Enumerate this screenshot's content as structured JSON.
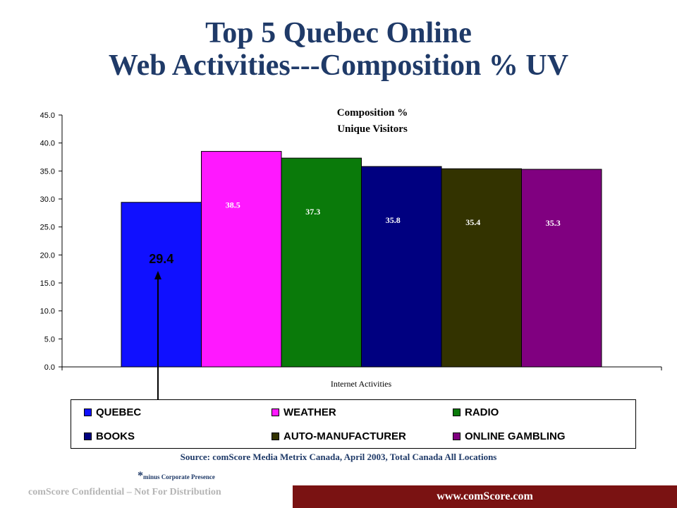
{
  "slide": {
    "title_line1": "Top 5 Quebec Online",
    "title_line2": "Web Activities---Composition % UV",
    "source": "Source: comScore Media Metrix Canada, April 2003, Total Canada All Locations",
    "footnote_star": "*",
    "footnote_text": "minus Corporate Presence",
    "confidential": "comScore Confidential – Not For Distribution",
    "url": "www.comScore.com"
  },
  "colors": {
    "title": "#1f3a68",
    "footer_bar": "#7a1212"
  },
  "chart_data": {
    "type": "bar",
    "title": "Composition %",
    "subtitle": "Unique Visitors",
    "xlabel": "Internet Activities",
    "ylabel": "",
    "ylim": [
      0,
      45
    ],
    "yticks": [
      "0.0",
      "5.0",
      "10.0",
      "15.0",
      "20.0",
      "25.0",
      "30.0",
      "35.0",
      "40.0",
      "45.0"
    ],
    "grid": false,
    "legend_position": "bottom",
    "series": [
      {
        "name": "QUEBEC",
        "value": 29.4,
        "label": "29.4",
        "color": "#1010ff"
      },
      {
        "name": "WEATHER",
        "value": 38.5,
        "label": "38.5",
        "color": "#ff18ff"
      },
      {
        "name": "RADIO",
        "value": 37.3,
        "label": "37.3",
        "color": "#0a7a0a"
      },
      {
        "name": "BOOKS",
        "value": 35.8,
        "label": "35.8",
        "color": "#000080"
      },
      {
        "name": "AUTO-MANUFACTURER",
        "value": 35.4,
        "label": "35.4",
        "color": "#333300"
      },
      {
        "name": "ONLINE GAMBLING",
        "value": 35.3,
        "label": "35.3",
        "color": "#800080"
      }
    ]
  }
}
